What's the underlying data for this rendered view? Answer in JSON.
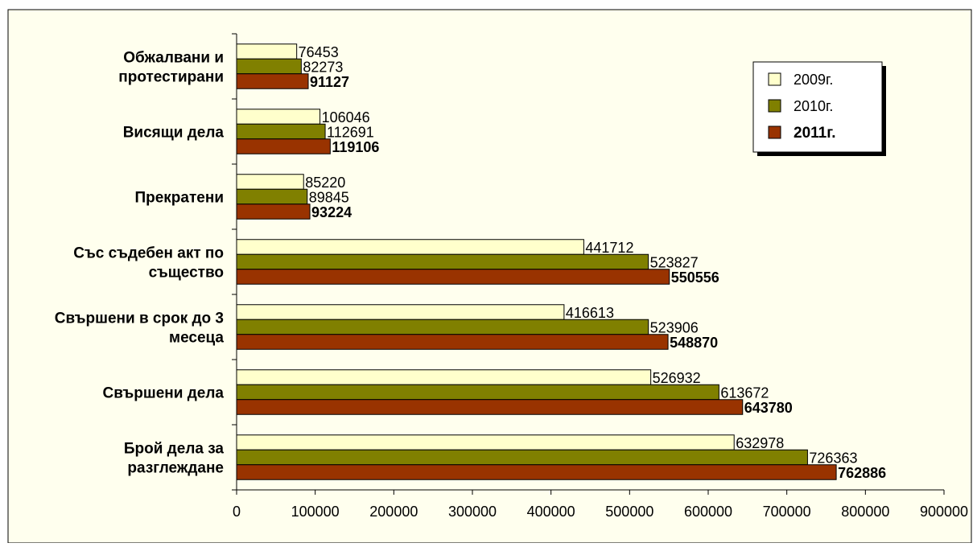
{
  "chart_data": {
    "type": "bar",
    "orientation": "horizontal",
    "categories": [
      [
        "Брой дела за",
        "разглеждане"
      ],
      [
        "Свършени дела"
      ],
      [
        "Свършени в срок до 3",
        "месеца"
      ],
      [
        "Със съдебен акт по",
        "същество"
      ],
      [
        "Прекратени"
      ],
      [
        "Висящи дела"
      ],
      [
        "Обжалвани и",
        "протестирани"
      ]
    ],
    "series": [
      {
        "name": "2009г.",
        "color": "#FFFFCC",
        "values": [
          632978,
          526932,
          416613,
          441712,
          85220,
          106046,
          76453
        ]
      },
      {
        "name": "2010г.",
        "color": "#808000",
        "values": [
          726363,
          613672,
          523906,
          523827,
          89845,
          112691,
          82273
        ]
      },
      {
        "name": "2011г.",
        "color": "#993300",
        "values": [
          762886,
          643780,
          548870,
          550556,
          93224,
          119106,
          91127
        ]
      }
    ],
    "xlim": [
      0,
      900000
    ],
    "xticks": [
      0,
      100000,
      200000,
      300000,
      400000,
      500000,
      600000,
      700000,
      800000,
      900000
    ],
    "grid": false,
    "legend_position": "top-right",
    "background_color": "#FFFFEE"
  }
}
